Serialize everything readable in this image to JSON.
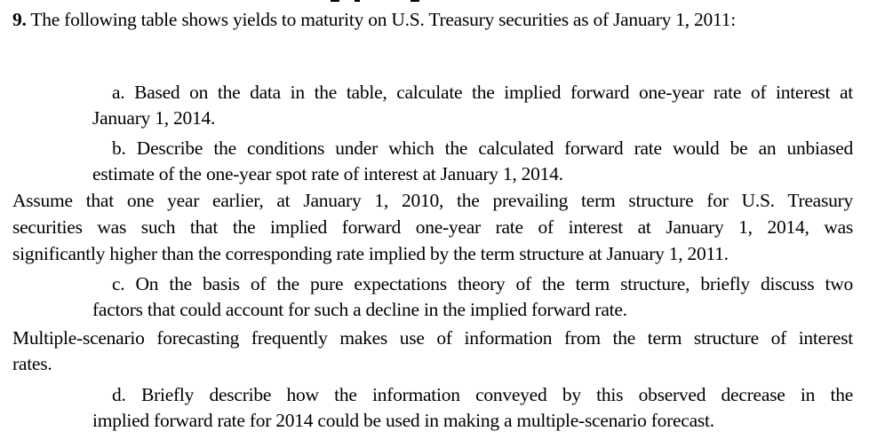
{
  "question": {
    "number": "9.",
    "intro": "The following table shows yields to maturity on U.S. Treasury securities as of January 1, 2011:"
  },
  "part_a": {
    "line1": "a. Based on the data in the table, calculate the implied forward one-year rate of interest at",
    "line2": "January 1, 2014."
  },
  "part_b": {
    "line1": "b. Describe the conditions under which the calculated forward rate would be an unbiased",
    "line2": "estimate of the one-year spot rate of interest at January 1, 2014."
  },
  "assumption": {
    "line1": "Assume that one year earlier, at January 1, 2010, the prevailing term structure for U.S. Treasury",
    "line2": "securities was such that the implied forward one-year rate of interest at January 1, 2014, was",
    "line3": "significantly higher than the corresponding rate implied by the term structure at January 1, 2011."
  },
  "part_c": {
    "line1": "c. On the basis of the pure expectations theory of the term structure, briefly discuss two",
    "line2": "factors that could account for such a decline in the implied forward rate."
  },
  "scenario": {
    "line1": "Multiple-scenario forecasting frequently makes use of information from the term structure of interest",
    "line2": "rates."
  },
  "part_d": {
    "line1": "d. Briefly describe how the information conveyed by this observed decrease in the",
    "line2": "implied forward rate for 2014 could be used in making a multiple-scenario forecast."
  }
}
